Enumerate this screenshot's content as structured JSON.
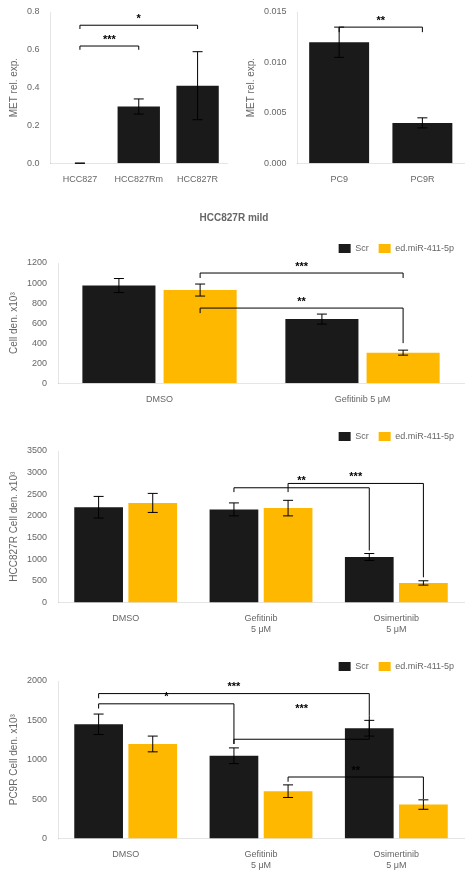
{
  "chart_data": [
    {
      "type": "bar",
      "categories": [
        "HCC827",
        "HCC827Rm",
        "HCC827R"
      ],
      "values": [
        0.0,
        0.3,
        0.41
      ],
      "errors": [
        0.0,
        0.04,
        0.18
      ],
      "color": "#1a1a1a",
      "ylabel": "MET rel. exp.",
      "ylim": [
        0,
        0.8
      ],
      "yticks": [
        {
          "value": 0.0,
          "label": "0.0"
        },
        0.2,
        0.4,
        0.6,
        0.8
      ],
      "grid": false,
      "annotations": [
        {
          "text": "***",
          "from": {
            "category": "HCC827"
          },
          "to": {
            "category": "HCC827Rm"
          },
          "y": 0.62,
          "y_from": 0.6,
          "y_to": 0.6
        },
        {
          "text": "*",
          "from": {
            "category": "HCC827"
          },
          "to": {
            "category": "HCC827R"
          },
          "y": 0.73,
          "y_from": 0.71,
          "y_to": 0.71
        }
      ]
    },
    {
      "type": "bar",
      "title": "HCC827R mild",
      "categories": [
        "DMSO",
        "Gefitinib 5 μM"
      ],
      "series": [
        {
          "name": "Scr",
          "color": "#1a1a1a",
          "values": [
            975,
            640
          ],
          "errors": [
            70,
            50
          ]
        },
        {
          "name": "ed.miR-411-5p",
          "color": "#FFB800",
          "values": [
            930,
            305
          ],
          "errors": [
            60,
            25
          ]
        }
      ],
      "ylabel": "Cell den. x10³",
      "ylim": [
        0,
        1200
      ],
      "yticks": [
        0,
        200,
        400,
        600,
        800,
        1000,
        1200
      ],
      "grid": false,
      "legend": "upper right",
      "annotations": [
        {
          "text": "***",
          "from": {
            "series": "ed.miR-411-5p",
            "category": "DMSO"
          },
          "to": {
            "series": "ed.miR-411-5p",
            "category": "Gefitinib 5 μM"
          },
          "y": 1100,
          "y_from": 1050,
          "y_to": 1050
        },
        {
          "text": "**",
          "from": {
            "series": "ed.miR-411-5p",
            "category": "DMSO"
          },
          "to": {
            "series": "ed.miR-411-5p",
            "category": "Gefitinib 5 μM"
          },
          "y": 750,
          "y_from": 700,
          "y_to": 400
        }
      ]
    },
    {
      "type": "bar",
      "categories": [
        "DMSO",
        "Gefitinib\n5 μM",
        "Osimertinib\n5 μM"
      ],
      "series": [
        {
          "name": "Scr",
          "color": "#1a1a1a",
          "values": [
            2200,
            2150,
            1050
          ],
          "errors": [
            250,
            150,
            80
          ]
        },
        {
          "name": "ed.miR-411-5p",
          "color": "#FFB800",
          "values": [
            2300,
            2180,
            450
          ],
          "errors": [
            220,
            180,
            50
          ]
        }
      ],
      "ylabel": "HCC827R Cell den. x10³",
      "ylim": [
        0,
        3500
      ],
      "yticks": [
        0,
        500,
        1000,
        1500,
        2000,
        2500,
        3000,
        3500
      ],
      "grid": false,
      "legend": "upper right",
      "annotations": [
        {
          "text": "**",
          "from": {
            "series": "Scr",
            "category": "Gefitinib\n5 μM"
          },
          "to": {
            "series": "Scr",
            "category": "Osimertinib\n5 μM"
          },
          "y": 2650,
          "y_from": 2550,
          "y_to": 1200
        },
        {
          "text": "***",
          "from": {
            "series": "ed.miR-411-5p",
            "category": "Gefitinib\n5 μM"
          },
          "to": {
            "series": "ed.miR-411-5p",
            "category": "Osimertinib\n5 μM"
          },
          "y": 2750,
          "y_from": 2550,
          "y_to": 580
        }
      ]
    },
    {
      "type": "bar",
      "categories": [
        "PC9",
        "PC9R"
      ],
      "values": [
        0.012,
        0.004
      ],
      "errors": [
        0.0015,
        0.0005
      ],
      "color": "#1a1a1a",
      "ylabel": "MET rel. exp.",
      "ylim": [
        0,
        0.015
      ],
      "yticks": [
        {
          "value": 0.0,
          "label": "0.000"
        },
        {
          "value": 0.005,
          "label": "0.005"
        },
        {
          "value": 0.01,
          "label": "0.010"
        },
        {
          "value": 0.015,
          "label": "0.015"
        }
      ],
      "grid": false,
      "annotations": [
        {
          "text": "**",
          "from": {
            "category": "PC9"
          },
          "to": {
            "category": "PC9R"
          },
          "y": 0.0135,
          "y_from": 0.013,
          "y_to": 0.013
        }
      ]
    },
    {
      "type": "bar",
      "categories": [
        "DMSO",
        "Gefitinib\n5 μM",
        "Osimertinib\n5 μM"
      ],
      "series": [
        {
          "name": "Scr",
          "color": "#1a1a1a",
          "values": [
            1450,
            1050,
            1400
          ],
          "errors": [
            130,
            100,
            100
          ]
        },
        {
          "name": "ed.miR-411-5p",
          "color": "#FFB800",
          "values": [
            1200,
            600,
            430
          ],
          "errors": [
            100,
            80,
            60
          ]
        }
      ],
      "ylabel": "PC9R Cell den. x10³",
      "ylim": [
        0,
        2000
      ],
      "yticks": [
        0,
        500,
        1000,
        1500,
        2000
      ],
      "grid": false,
      "legend": "upper right",
      "annotations": [
        {
          "text": "*",
          "from": {
            "series": "Scr",
            "category": "DMSO"
          },
          "to": {
            "series": "Scr",
            "category": "Gefitinib\n5 μM"
          },
          "y": 1710,
          "y_from": 1650,
          "y_to": 1200
        },
        {
          "text": "***",
          "from": {
            "series": "Scr",
            "category": "DMSO"
          },
          "to": {
            "series": "Scr",
            "category": "Osimertinib\n5 μM"
          },
          "y": 1840,
          "y_from": 1780,
          "y_to": 1560
        },
        {
          "text": "**",
          "from": {
            "series": "ed.miR-411-5p",
            "category": "Gefitinib\n5 μM"
          },
          "to": {
            "series": "ed.miR-411-5p",
            "category": "Osimertinib\n5 μM"
          },
          "y": 780,
          "y_from": 720,
          "y_to": 500
        },
        {
          "text": "***",
          "from": {
            "series": "Scr",
            "category": "Gefitinib\n5 μM"
          },
          "to": {
            "series": "Scr",
            "category": "Osimertinib\n5 μM"
          },
          "y": 1260,
          "y_from": 1200,
          "y_to": 1560
        }
      ]
    }
  ]
}
